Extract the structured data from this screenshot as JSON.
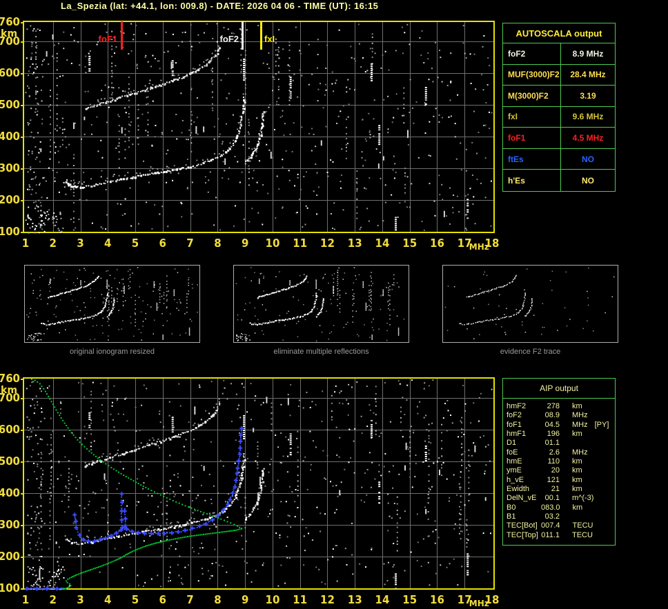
{
  "title": "La_Spezia (lat: +44.1, lon: 009.8) - DATE: 2026 04 06 - TIME (UT): 16:15",
  "colors": {
    "frame": "#e3e300",
    "axis": "#f0dc3c",
    "grid": "#6f6f6f",
    "table_border": "#4ecb4e",
    "title": "#ffffa8",
    "caption": "#9b9b9b",
    "trace_blue": "#3b4bff",
    "profile_green": "#00cc33"
  },
  "autoscala_table": {
    "header": "AUTOSCALA output",
    "rows": [
      {
        "label": "foF2",
        "value": "8.9 MHz",
        "color": "#f2f2e4"
      },
      {
        "label": "MUF(3000)F2",
        "value": "28.4 MHz",
        "color": "#ffdf4d"
      },
      {
        "label": "M(3000)F2",
        "value": "3.19",
        "color": "#ffdf4d"
      },
      {
        "label": "fxI",
        "value": "9.6 MHz",
        "color": "#d2c43a"
      },
      {
        "label": "foF1",
        "value": "4.5 MHz",
        "color": "#ff2020"
      },
      {
        "label": "ftEs",
        "value": "NO",
        "color": "#2266ff"
      },
      {
        "label": "h'Es",
        "value": "NO",
        "color": "#ffe96e"
      }
    ]
  },
  "aip_table": {
    "header": "AIP output",
    "rows": [
      {
        "label": "hmF2",
        "value": "278",
        "unit": "km",
        "extra": ""
      },
      {
        "label": "foF2",
        "value": "08.9",
        "unit": "MHz",
        "extra": ""
      },
      {
        "label": "foF1",
        "value": "04.5",
        "unit": "MHz",
        "extra": "[PY]"
      },
      {
        "label": "hmF1",
        "value": "196",
        "unit": "km",
        "extra": ""
      },
      {
        "label": "D1",
        "value": "01.1",
        "unit": "",
        "extra": ""
      },
      {
        "label": "foE",
        "value": "2.6",
        "unit": "MHz",
        "extra": ""
      },
      {
        "label": "hmE",
        "value": "110",
        "unit": "km",
        "extra": ""
      },
      {
        "label": "ymE",
        "value": "20",
        "unit": "km",
        "extra": ""
      },
      {
        "label": "h_vE",
        "value": "121",
        "unit": "km",
        "extra": ""
      },
      {
        "label": "Ewidth",
        "value": "21",
        "unit": "km",
        "extra": ""
      },
      {
        "label": "DelN_vE",
        "value": "00.1",
        "unit": "m^(-3)",
        "extra": ""
      },
      {
        "label": "B0",
        "value": "083.0",
        "unit": "km",
        "extra": ""
      },
      {
        "label": "B1",
        "value": "03.2",
        "unit": "",
        "extra": ""
      },
      {
        "label": "TEC[Bot]",
        "value": "007.4",
        "unit": "TECU",
        "extra": ""
      },
      {
        "label": "TEC[Top]",
        "value": "011.1",
        "unit": "TECU",
        "extra": ""
      }
    ]
  },
  "thumbnails": [
    {
      "caption": "original ionogram resized"
    },
    {
      "caption": "eliminate multiple reflections"
    },
    {
      "caption": "evidence F2 trace"
    }
  ],
  "chart_data": [
    {
      "name": "measured-ionogram",
      "type": "scatter",
      "xlabel": "MHz",
      "ylabel": "km",
      "xlim": [
        1,
        18
      ],
      "ylim": [
        100,
        760
      ],
      "x_ticks": [
        1,
        2,
        3,
        4,
        5,
        6,
        7,
        8,
        9,
        10,
        11,
        12,
        13,
        14,
        15,
        16,
        17,
        18
      ],
      "y_ticks": [
        760,
        700,
        600,
        500,
        400,
        300,
        200,
        100
      ],
      "grid": true,
      "noise_seed": 7,
      "markers": [
        {
          "label": "foF1",
          "f": 4.5,
          "color": "#ff2020"
        },
        {
          "label": "foF2",
          "f": 8.9,
          "color": "#f0f0f0"
        },
        {
          "label": "fxI",
          "f": 9.6,
          "color": "#ffee00"
        }
      ],
      "rfi_streaks": [
        [
          3.32,
          606,
          654
        ],
        [
          8.95,
          570,
          645
        ],
        [
          10.65,
          520,
          588
        ],
        [
          13.6,
          573,
          630
        ],
        [
          15.58,
          498,
          556
        ],
        [
          13.88,
          369,
          436
        ],
        [
          17.1,
          140,
          210
        ],
        [
          14.48,
          100,
          147
        ],
        [
          6.35,
          592,
          640
        ]
      ],
      "series": [
        {
          "name": "F-trace-ordinary",
          "color": "#ffffff",
          "marker": "trace",
          "points": [
            [
              2.45,
              256
            ],
            [
              2.6,
              249
            ],
            [
              2.75,
              245
            ],
            [
              2.95,
              243
            ],
            [
              3.15,
              244
            ],
            [
              3.4,
              248
            ],
            [
              3.7,
              253
            ],
            [
              4.0,
              259
            ],
            [
              4.3,
              264
            ],
            [
              4.6,
              269
            ],
            [
              4.9,
              274
            ],
            [
              5.2,
              279
            ],
            [
              5.5,
              283
            ],
            [
              5.8,
              287
            ],
            [
              6.1,
              291
            ],
            [
              6.4,
              296
            ],
            [
              6.7,
              301
            ],
            [
              7.0,
              307
            ],
            [
              7.3,
              314
            ],
            [
              7.6,
              322
            ],
            [
              7.9,
              332
            ],
            [
              8.15,
              344
            ],
            [
              8.35,
              358
            ],
            [
              8.52,
              374
            ],
            [
              8.65,
              393
            ],
            [
              8.75,
              415
            ],
            [
              8.83,
              442
            ],
            [
              8.89,
              472
            ],
            [
              8.93,
              502
            ],
            [
              8.95,
              525
            ]
          ]
        },
        {
          "name": "F-trace-extraordinary",
          "color": "#ffffff",
          "marker": "trace",
          "points": [
            [
              8.98,
              318
            ],
            [
              9.1,
              330
            ],
            [
              9.25,
              345
            ],
            [
              9.38,
              362
            ],
            [
              9.48,
              384
            ],
            [
              9.56,
              412
            ],
            [
              9.61,
              445
            ],
            [
              9.64,
              478
            ]
          ]
        },
        {
          "name": "multiple-reflection-trace",
          "color": "#e8e8e8",
          "marker": "trace",
          "points": [
            [
              3.15,
              488
            ],
            [
              3.5,
              498
            ],
            [
              3.9,
              509
            ],
            [
              4.3,
              520
            ],
            [
              4.7,
              531
            ],
            [
              5.1,
              542
            ],
            [
              5.5,
              553
            ],
            [
              5.9,
              564
            ],
            [
              6.3,
              576
            ],
            [
              6.7,
              589
            ],
            [
              7.05,
              602
            ],
            [
              7.35,
              616
            ],
            [
              7.6,
              631
            ],
            [
              7.8,
              648
            ],
            [
              7.95,
              665
            ],
            [
              8.05,
              682
            ]
          ]
        }
      ]
    },
    {
      "name": "ionogram-with-aip-fit",
      "type": "scatter",
      "xlabel": "MHz",
      "ylabel": "km",
      "xlim": [
        1,
        18
      ],
      "ylim": [
        100,
        760
      ],
      "x_ticks": [
        1,
        2,
        3,
        4,
        5,
        6,
        7,
        8,
        9,
        10,
        11,
        12,
        13,
        14,
        15,
        16,
        17,
        18
      ],
      "y_ticks": [
        760,
        700,
        600,
        500,
        400,
        300,
        200,
        100
      ],
      "grid": true,
      "noise_seed": 19,
      "include_series_from": 0,
      "rfi_streaks": [
        [
          3.32,
          606,
          654
        ],
        [
          8.95,
          570,
          645
        ],
        [
          10.65,
          520,
          588
        ],
        [
          13.6,
          573,
          630
        ],
        [
          15.58,
          498,
          556
        ],
        [
          13.88,
          369,
          436
        ],
        [
          17.1,
          140,
          210
        ],
        [
          14.48,
          100,
          147
        ],
        [
          6.35,
          592,
          640
        ]
      ],
      "series": [
        {
          "name": "fitted-E-trace",
          "color": "#3b4bff",
          "marker": "plusline",
          "points": [
            [
              1.02,
              101
            ],
            [
              2.44,
              101
            ]
          ]
        },
        {
          "name": "fitted-F-trace",
          "color": "#3b4bff",
          "marker": "plus",
          "points": [
            [
              2.78,
              332
            ],
            [
              2.8,
              312
            ],
            [
              2.84,
              294
            ],
            [
              2.9,
              278
            ],
            [
              2.98,
              264
            ],
            [
              3.08,
              255
            ],
            [
              3.2,
              250
            ],
            [
              3.35,
              249
            ],
            [
              3.55,
              252
            ],
            [
              3.75,
              257
            ],
            [
              3.95,
              263
            ],
            [
              4.15,
              270
            ],
            [
              4.3,
              277
            ],
            [
              4.42,
              284
            ],
            [
              4.52,
              290
            ],
            [
              4.65,
              288
            ],
            [
              4.78,
              284
            ],
            [
              4.92,
              280
            ],
            [
              5.1,
              277
            ],
            [
              5.3,
              275
            ],
            [
              5.55,
              274
            ],
            [
              5.8,
              274
            ],
            [
              6.05,
              275
            ],
            [
              6.3,
              277
            ],
            [
              6.55,
              280
            ],
            [
              6.8,
              284
            ],
            [
              7.05,
              290
            ],
            [
              7.3,
              297
            ],
            [
              7.55,
              306
            ],
            [
              7.78,
              317
            ],
            [
              8.0,
              331
            ],
            [
              8.18,
              347
            ],
            [
              8.34,
              366
            ],
            [
              8.47,
              388
            ],
            [
              8.57,
              414
            ],
            [
              8.65,
              443
            ],
            [
              8.71,
              475
            ],
            [
              8.76,
              510
            ],
            [
              8.8,
              545
            ],
            [
              8.83,
              578
            ],
            [
              8.85,
              605
            ]
          ]
        },
        {
          "name": "F1-cusp-spike",
          "color": "#3b4bff",
          "marker": "spike",
          "points": [
            [
              4.48,
              292
            ],
            [
              4.48,
              398
            ]
          ]
        },
        {
          "name": "F1-cusp-spike-2",
          "color": "#3b4bff",
          "marker": "spike",
          "points": [
            [
              4.6,
              295
            ],
            [
              4.6,
              352
            ]
          ]
        },
        {
          "name": "model-profile-bottomside",
          "color": "#00cc33",
          "marker": "profile",
          "points": [
            [
              2.32,
              100
            ],
            [
              2.45,
              102
            ],
            [
              2.56,
              106
            ],
            [
              2.62,
              111
            ],
            [
              2.58,
              116
            ],
            [
              2.5,
              120
            ],
            [
              2.46,
              125
            ],
            [
              2.52,
              131
            ],
            [
              2.65,
              137
            ],
            [
              2.85,
              145
            ],
            [
              3.1,
              153
            ],
            [
              3.4,
              162
            ],
            [
              3.7,
              171
            ],
            [
              4.0,
              181
            ],
            [
              4.25,
              190
            ],
            [
              4.45,
              198
            ],
            [
              4.62,
              207
            ],
            [
              4.82,
              216
            ],
            [
              5.05,
              225
            ],
            [
              5.35,
              235
            ],
            [
              5.7,
              244
            ],
            [
              6.1,
              252
            ],
            [
              6.5,
              259
            ],
            [
              6.95,
              266
            ],
            [
              7.4,
              271
            ],
            [
              7.85,
              276
            ],
            [
              8.3,
              281
            ],
            [
              8.65,
              285
            ],
            [
              8.85,
              290
            ]
          ]
        },
        {
          "name": "model-profile-topside",
          "color": "#00cc33",
          "marker": "profile-dotted",
          "points": [
            [
              8.85,
              290
            ],
            [
              8.7,
              298
            ],
            [
              8.45,
              308
            ],
            [
              8.1,
              320
            ],
            [
              7.7,
              333
            ],
            [
              7.25,
              347
            ],
            [
              6.8,
              362
            ],
            [
              6.35,
              378
            ],
            [
              5.9,
              396
            ],
            [
              5.45,
              415
            ],
            [
              5.0,
              436
            ],
            [
              4.55,
              458
            ],
            [
              4.1,
              482
            ],
            [
              3.7,
              506
            ],
            [
              3.3,
              534
            ],
            [
              2.95,
              562
            ],
            [
              2.65,
              592
            ],
            [
              2.4,
              622
            ],
            [
              2.15,
              655
            ],
            [
              1.92,
              690
            ],
            [
              1.7,
              722
            ],
            [
              1.5,
              746
            ],
            [
              1.32,
              757
            ],
            [
              1.2,
              760
            ]
          ]
        }
      ]
    }
  ]
}
